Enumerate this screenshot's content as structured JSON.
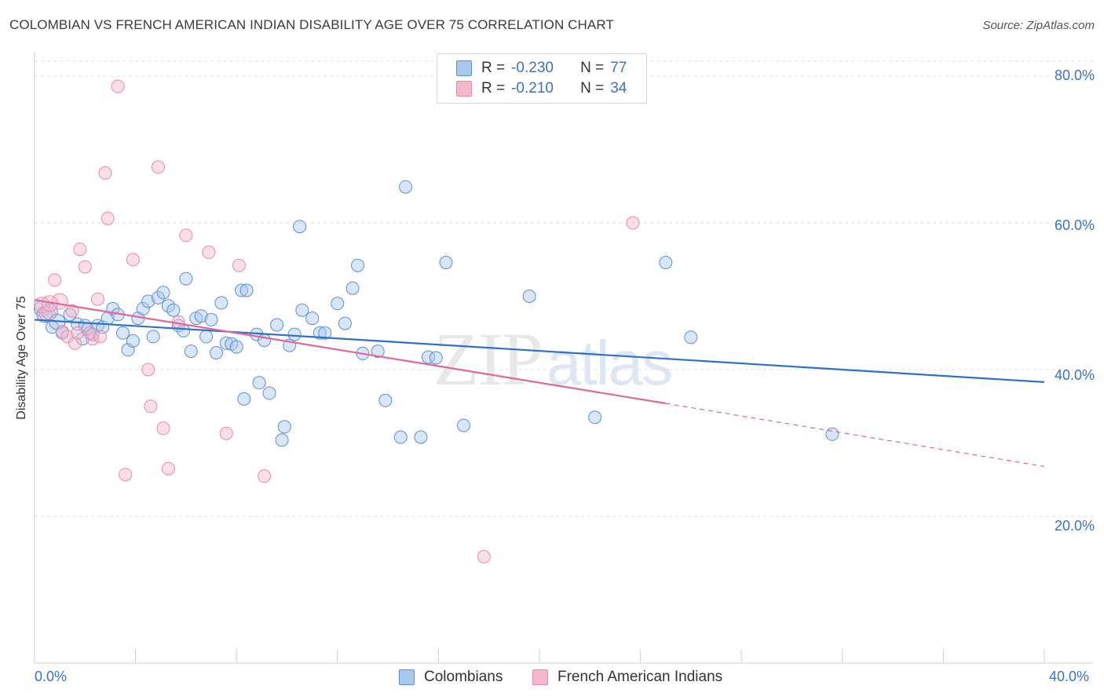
{
  "header": {
    "title": "COLOMBIAN VS FRENCH AMERICAN INDIAN DISABILITY AGE OVER 75 CORRELATION CHART",
    "source": "Source: ZipAtlas.com"
  },
  "legend": {
    "rows": [
      {
        "r_label": "R =",
        "r_value": "-0.230",
        "n_label": "N =",
        "n_value": "77",
        "color": "#a9c8ee"
      },
      {
        "r_label": "R =",
        "r_value": "-0.210",
        "n_label": "N =",
        "n_value": "34",
        "color": "#f6b9cb"
      }
    ]
  },
  "watermark": {
    "zip": "ZIP",
    "atlas": "atlas"
  },
  "bottom_legend": {
    "items": [
      {
        "label": "Colombians",
        "color": "#a9c8ee"
      },
      {
        "label": "French American Indians",
        "color": "#f6b9cb"
      }
    ]
  },
  "axes": {
    "ylabel": "Disability Age Over 75",
    "yticks": [
      "80.0%",
      "60.0%",
      "40.0%",
      "20.0%"
    ],
    "xticks": [
      "0.0%",
      "40.0%"
    ]
  },
  "chart_data": {
    "type": "scatter",
    "title": "COLOMBIAN VS FRENCH AMERICAN INDIAN DISABILITY AGE OVER 75 CORRELATION CHART",
    "xlabel": "",
    "ylabel": "Disability Age Over 75",
    "xlim": [
      0,
      40
    ],
    "ylim": [
      0,
      80
    ],
    "grid": true,
    "legend_position": "top-center",
    "series": [
      {
        "name": "Colombians",
        "color": "#a9c8ee",
        "stroke": "#5b8fd6",
        "trend": {
          "x": [
            0,
            40
          ],
          "y": [
            46.8,
            38.3
          ],
          "color": "#3071c8"
        },
        "points": [
          [
            0.3,
            48.3
          ],
          [
            0.4,
            47.5
          ],
          [
            0.6,
            47.9
          ],
          [
            0.7,
            45.8
          ],
          [
            0.9,
            46.5
          ],
          [
            1.1,
            45.0
          ],
          [
            1.4,
            47.5
          ],
          [
            1.7,
            46.2
          ],
          [
            1.9,
            44.2
          ],
          [
            2.1,
            45.5
          ],
          [
            2.3,
            44.8
          ],
          [
            2.5,
            46.0
          ],
          [
            2.7,
            45.8
          ],
          [
            2.9,
            47.0
          ],
          [
            3.1,
            48.3
          ],
          [
            3.3,
            47.5
          ],
          [
            3.5,
            45.0
          ],
          [
            3.7,
            42.7
          ],
          [
            3.9,
            43.9
          ],
          [
            4.1,
            47.0
          ],
          [
            4.3,
            48.3
          ],
          [
            4.5,
            49.3
          ],
          [
            4.7,
            44.5
          ],
          [
            4.9,
            49.8
          ],
          [
            5.1,
            50.5
          ],
          [
            5.3,
            48.7
          ],
          [
            5.5,
            48.1
          ],
          [
            5.7,
            46.0
          ],
          [
            5.9,
            45.3
          ],
          [
            6.0,
            52.4
          ],
          [
            6.2,
            42.5
          ],
          [
            6.4,
            47.0
          ],
          [
            6.6,
            47.3
          ],
          [
            6.8,
            44.5
          ],
          [
            7.0,
            46.8
          ],
          [
            7.2,
            42.3
          ],
          [
            7.4,
            49.1
          ],
          [
            7.6,
            43.6
          ],
          [
            7.8,
            43.5
          ],
          [
            8.0,
            43.1
          ],
          [
            8.2,
            50.8
          ],
          [
            8.3,
            36.0
          ],
          [
            8.4,
            50.8
          ],
          [
            8.8,
            44.8
          ],
          [
            8.9,
            38.2
          ],
          [
            9.1,
            44.0
          ],
          [
            9.3,
            36.8
          ],
          [
            9.6,
            46.1
          ],
          [
            9.9,
            32.2
          ],
          [
            10.1,
            43.3
          ],
          [
            10.3,
            44.8
          ],
          [
            10.5,
            59.5
          ],
          [
            10.6,
            48.1
          ],
          [
            11.0,
            47.0
          ],
          [
            11.3,
            45.0
          ],
          [
            11.5,
            45.0
          ],
          [
            12.0,
            49.0
          ],
          [
            12.3,
            46.3
          ],
          [
            12.6,
            51.1
          ],
          [
            12.8,
            54.2
          ],
          [
            13.0,
            42.2
          ],
          [
            13.6,
            42.5
          ],
          [
            13.9,
            35.8
          ],
          [
            14.5,
            30.8
          ],
          [
            14.7,
            64.9
          ],
          [
            15.3,
            30.8
          ],
          [
            15.6,
            41.7
          ],
          [
            15.9,
            41.6
          ],
          [
            16.3,
            54.6
          ],
          [
            17.0,
            32.4
          ],
          [
            19.6,
            50.0
          ],
          [
            22.2,
            33.5
          ],
          [
            25.0,
            54.6
          ],
          [
            26.0,
            44.4
          ],
          [
            31.6,
            31.2
          ],
          [
            2.0,
            46.0
          ],
          [
            9.8,
            30.4
          ]
        ]
      },
      {
        "name": "French American Indians",
        "color": "#f6b9cb",
        "stroke": "#e88aa6",
        "trend": {
          "x": [
            0,
            25
          ],
          "y": [
            49.5,
            35.4
          ],
          "color": "#e0689a"
        },
        "trend_dashed": {
          "x": [
            25,
            40
          ],
          "y": [
            35.4,
            26.8
          ]
        },
        "points": [
          [
            0.3,
            48.8
          ],
          [
            0.5,
            47.6
          ],
          [
            0.8,
            52.2
          ],
          [
            1.0,
            49.3
          ],
          [
            1.1,
            45.2
          ],
          [
            1.3,
            44.5
          ],
          [
            1.5,
            48.0
          ],
          [
            1.6,
            43.6
          ],
          [
            1.8,
            56.4
          ],
          [
            2.0,
            54.0
          ],
          [
            2.3,
            44.2
          ],
          [
            2.5,
            49.6
          ],
          [
            2.8,
            66.8
          ],
          [
            2.9,
            60.6
          ],
          [
            3.3,
            78.6
          ],
          [
            3.6,
            25.7
          ],
          [
            3.9,
            55.0
          ],
          [
            4.5,
            40.0
          ],
          [
            4.6,
            35.0
          ],
          [
            4.9,
            67.6
          ],
          [
            5.1,
            32.0
          ],
          [
            5.3,
            26.5
          ],
          [
            5.7,
            46.5
          ],
          [
            6.0,
            58.3
          ],
          [
            6.9,
            56.0
          ],
          [
            7.6,
            31.3
          ],
          [
            8.1,
            54.2
          ],
          [
            9.1,
            25.5
          ],
          [
            17.8,
            14.5
          ],
          [
            23.7,
            60.0
          ],
          [
            0.6,
            49.0
          ],
          [
            1.7,
            45.0
          ],
          [
            2.2,
            45.0
          ],
          [
            2.6,
            44.5
          ]
        ]
      }
    ]
  }
}
